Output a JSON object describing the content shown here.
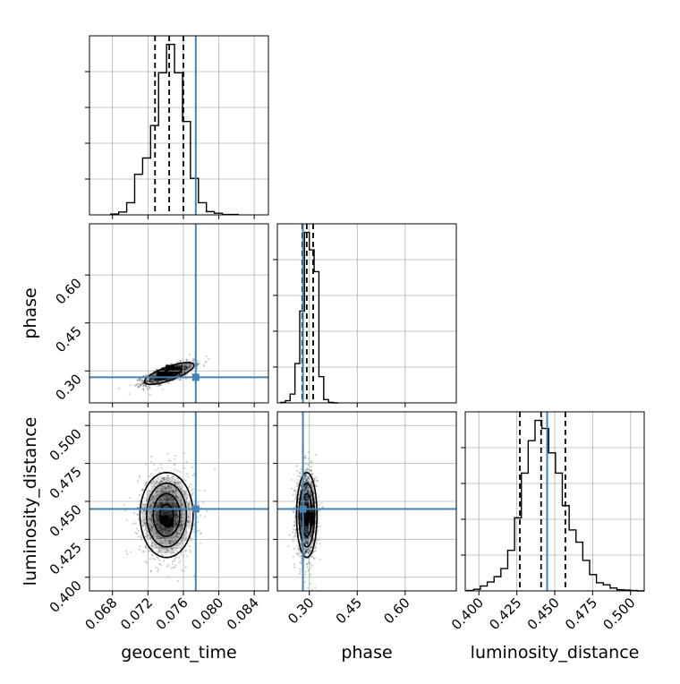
{
  "chart_data": {
    "type": "corner",
    "parameters": [
      "geocent_time",
      "phase",
      "luminosity_distance"
    ],
    "truth_color": "#4682b4",
    "truths": {
      "geocent_time": 0.0774,
      "phase": 0.28,
      "luminosity_distance": 0.445
    },
    "ranges": {
      "geocent_time": [
        0.0654,
        0.0856
      ],
      "phase": [
        0.2,
        0.76
      ],
      "luminosity_distance": [
        0.391,
        0.509
      ]
    },
    "ticks": {
      "geocent_time": {
        "values": [
          0.068,
          0.072,
          0.076,
          0.08,
          0.084
        ],
        "labels": [
          "0.068",
          "0.072",
          "0.076",
          "0.080",
          "0.084"
        ]
      },
      "phase": {
        "values": [
          0.3,
          0.45,
          0.6
        ],
        "labels": [
          "0.30",
          "0.45",
          "0.60"
        ]
      },
      "luminosity_distance": {
        "values": [
          0.4,
          0.425,
          0.45,
          0.475,
          0.5
        ],
        "labels": [
          "0.400",
          "0.425",
          "0.450",
          "0.475",
          "0.500"
        ]
      }
    },
    "marginals": [
      {
        "parameter": "geocent_time",
        "bin_edges": [
          0.0678,
          0.0687,
          0.0696,
          0.0705,
          0.0714,
          0.0723,
          0.0732,
          0.0741,
          0.075,
          0.0759,
          0.0768,
          0.0777,
          0.0786,
          0.0795,
          0.0804,
          0.0813,
          0.0822
        ],
        "counts": [
          2,
          7,
          30,
          100,
          140,
          220,
          350,
          420,
          350,
          230,
          90,
          30,
          8,
          4,
          1,
          1
        ],
        "quantiles": [
          0.0728,
          0.0744,
          0.076
        ]
      },
      {
        "parameter": "phase",
        "bin_edges": [
          0.21,
          0.225,
          0.24,
          0.255,
          0.27,
          0.285,
          0.3,
          0.315,
          0.33,
          0.345,
          0.36,
          0.375,
          0.39
        ],
        "counts": [
          2,
          10,
          40,
          180,
          420,
          780,
          700,
          600,
          120,
          15,
          2,
          0
        ],
        "quantiles": [
          0.278,
          0.292,
          0.312
        ]
      },
      {
        "parameter": "luminosity_distance",
        "bin_edges": [
          0.392,
          0.3965,
          0.401,
          0.4055,
          0.41,
          0.4145,
          0.419,
          0.4235,
          0.428,
          0.4325,
          0.437,
          0.4415,
          0.446,
          0.4505,
          0.455,
          0.4595,
          0.464,
          0.4685,
          0.473,
          0.4775,
          0.482,
          0.4865,
          0.491,
          0.4955,
          0.5,
          0.5045,
          0.509
        ],
        "counts": [
          1,
          4,
          12,
          22,
          35,
          55,
          100,
          180,
          290,
          370,
          420,
          400,
          340,
          290,
          210,
          150,
          120,
          75,
          40,
          20,
          15,
          7,
          3,
          2,
          1,
          0
        ],
        "quantiles": [
          0.427,
          0.441,
          0.457
        ]
      }
    ],
    "joints": [
      {
        "x": "geocent_time",
        "y": "phase",
        "center": [
          0.0744,
          0.292
        ],
        "sigma": [
          0.0014,
          0.017
        ],
        "correlation": 0.75,
        "density_peaks": [
          {
            "x": 0.0745,
            "y": 0.305,
            "level": 1.0
          },
          {
            "x": 0.074,
            "y": 0.292,
            "level": 0.95
          },
          {
            "x": 0.0735,
            "y": 0.29,
            "level": 0.9
          }
        ],
        "contour_levels_sigma": [
          1,
          2
        ]
      },
      {
        "x": "geocent_time",
        "y": "luminosity_distance",
        "center": [
          0.0741,
          0.441
        ],
        "sigma": [
          0.0015,
          0.014
        ],
        "correlation": 0.0,
        "density_peaks": [
          {
            "x": 0.0739,
            "y": 0.438,
            "level": 1.0
          },
          {
            "x": 0.0744,
            "y": 0.436,
            "level": 0.95
          }
        ],
        "contour_levels_sigma": [
          0.5,
          1,
          1.5,
          2
        ]
      },
      {
        "x": "phase",
        "y": "luminosity_distance",
        "center": [
          0.292,
          0.441
        ],
        "sigma": [
          0.016,
          0.014
        ],
        "correlation": 0.0,
        "density_peaks": [
          {
            "x": 0.3,
            "y": 0.437,
            "level": 1.0
          },
          {
            "x": 0.303,
            "y": 0.44,
            "level": 0.95
          }
        ],
        "contour_levels_sigma": [
          0.5,
          1,
          1.5,
          2
        ]
      }
    ],
    "grid": true
  }
}
